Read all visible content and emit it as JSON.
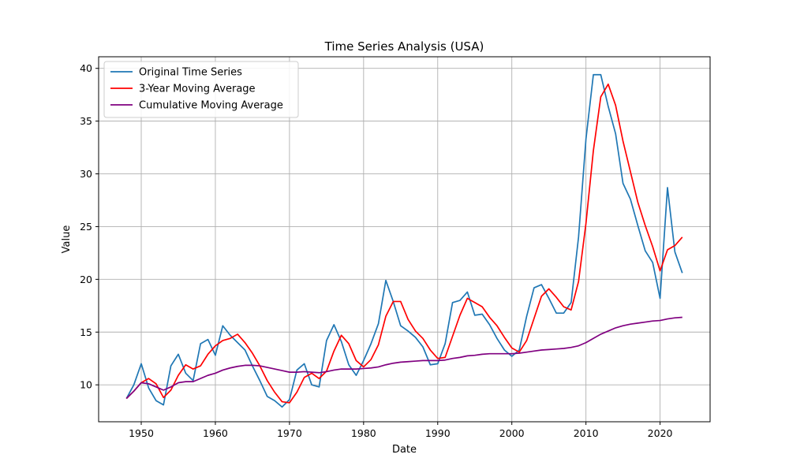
{
  "chart_data": {
    "type": "line",
    "title": "Time Series Analysis (USA)",
    "xlabel": "Date",
    "ylabel": "Value",
    "xlim": [
      1944.25,
      2026.75
    ],
    "ylim": [
      6.5,
      41.1
    ],
    "x_ticks": [
      1950,
      1960,
      1970,
      1980,
      1990,
      2000,
      2010,
      2020
    ],
    "y_ticks": [
      10,
      15,
      20,
      25,
      30,
      35,
      40
    ],
    "grid": true,
    "legend_position": "top-left",
    "x": [
      1948,
      1949,
      1950,
      1951,
      1952,
      1953,
      1954,
      1955,
      1956,
      1957,
      1958,
      1959,
      1960,
      1961,
      1962,
      1963,
      1964,
      1965,
      1966,
      1967,
      1968,
      1969,
      1970,
      1971,
      1972,
      1973,
      1974,
      1975,
      1976,
      1977,
      1978,
      1979,
      1980,
      1981,
      1982,
      1983,
      1984,
      1985,
      1986,
      1987,
      1988,
      1989,
      1990,
      1991,
      1992,
      1993,
      1994,
      1995,
      1996,
      1997,
      1998,
      1999,
      2000,
      2001,
      2002,
      2003,
      2004,
      2005,
      2006,
      2007,
      2008,
      2009,
      2010,
      2011,
      2012,
      2013,
      2014,
      2015,
      2016,
      2017,
      2018,
      2019,
      2020,
      2021,
      2022,
      2023
    ],
    "series": [
      {
        "name": "Original Time Series",
        "color": "#1f77b4",
        "values": [
          8.7,
          10.0,
          12.0,
          9.7,
          8.5,
          8.1,
          11.8,
          12.9,
          11.1,
          10.4,
          13.9,
          14.3,
          12.8,
          15.6,
          14.7,
          14.0,
          13.3,
          11.8,
          10.4,
          8.9,
          8.5,
          7.9,
          8.6,
          11.4,
          12.0,
          10.0,
          9.8,
          14.2,
          15.7,
          14.1,
          11.9,
          10.9,
          12.3,
          13.9,
          15.8,
          19.9,
          17.9,
          15.6,
          15.1,
          14.5,
          13.6,
          11.9,
          12.0,
          13.9,
          17.8,
          18.0,
          18.8,
          16.6,
          16.7,
          15.7,
          14.4,
          13.3,
          12.7,
          13.3,
          16.5,
          19.2,
          19.5,
          18.2,
          16.8,
          16.8,
          17.8,
          24.0,
          33.3,
          39.4,
          39.4,
          36.4,
          33.8,
          29.1,
          27.6,
          25.1,
          22.7,
          21.6,
          18.2,
          28.7,
          22.6,
          20.6
        ]
      },
      {
        "name": "3-Year Moving Average",
        "color": "#ff0000",
        "values": [
          8.7,
          9.4,
          10.2,
          10.6,
          10.1,
          8.8,
          9.5,
          10.9,
          11.9,
          11.5,
          11.8,
          12.9,
          13.7,
          14.2,
          14.4,
          14.8,
          14.0,
          13.0,
          11.8,
          10.4,
          9.3,
          8.4,
          8.3,
          9.3,
          10.7,
          11.1,
          10.6,
          11.3,
          13.2,
          14.7,
          13.9,
          12.3,
          11.7,
          12.4,
          13.8,
          16.5,
          17.9,
          17.9,
          16.2,
          15.1,
          14.4,
          13.3,
          12.5,
          12.6,
          14.6,
          16.6,
          18.2,
          17.8,
          17.4,
          16.4,
          15.6,
          14.5,
          13.5,
          13.1,
          14.2,
          16.3,
          18.4,
          19.1,
          18.3,
          17.4,
          17.1,
          19.8,
          25.3,
          32.2,
          37.3,
          38.5,
          36.5,
          33.1,
          30.2,
          27.3,
          25.1,
          23.1,
          20.8,
          22.8,
          23.2,
          24.0
        ]
      },
      {
        "name": "Cumulative Moving Average",
        "color": "#800080",
        "values": [
          8.7,
          9.4,
          10.2,
          10.1,
          9.8,
          9.5,
          9.8,
          10.2,
          10.3,
          10.3,
          10.6,
          10.9,
          11.1,
          11.4,
          11.6,
          11.75,
          11.85,
          11.85,
          11.8,
          11.65,
          11.5,
          11.35,
          11.2,
          11.2,
          11.25,
          11.2,
          11.15,
          11.25,
          11.4,
          11.5,
          11.5,
          11.5,
          11.55,
          11.6,
          11.7,
          11.9,
          12.05,
          12.15,
          12.2,
          12.25,
          12.3,
          12.3,
          12.3,
          12.35,
          12.5,
          12.6,
          12.75,
          12.8,
          12.9,
          12.95,
          12.95,
          12.95,
          12.95,
          13.0,
          13.1,
          13.2,
          13.3,
          13.35,
          13.4,
          13.45,
          13.55,
          13.7,
          14.0,
          14.4,
          14.8,
          15.1,
          15.4,
          15.6,
          15.75,
          15.85,
          15.95,
          16.05,
          16.1,
          16.25,
          16.35,
          16.4
        ]
      }
    ]
  }
}
